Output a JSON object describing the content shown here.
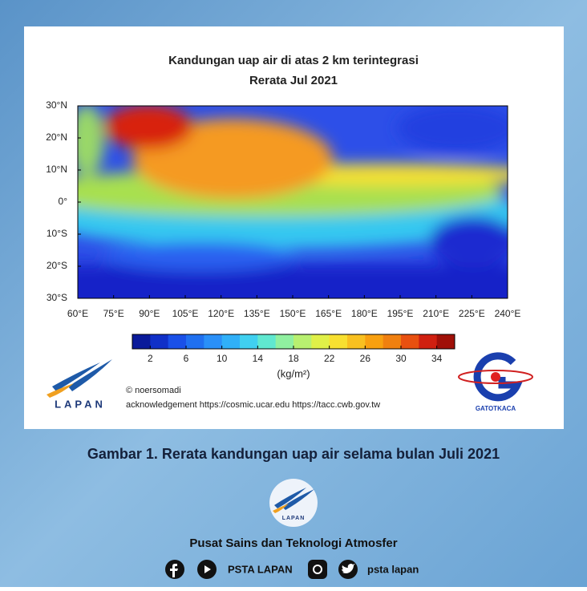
{
  "figure": {
    "title": "Kandungan uap air di atas 2 km terintegrasi",
    "subtitle": "Rerata Jul 2021",
    "lat_ticks": [
      "30°N",
      "20°N",
      "10°N",
      "0°",
      "10°S",
      "20°S",
      "30°S"
    ],
    "lon_ticks": [
      "60°E",
      "75°E",
      "90°E",
      "105°E",
      "120°E",
      "135°E",
      "150°E",
      "165°E",
      "180°E",
      "195°E",
      "210°E",
      "225°E",
      "240°E"
    ],
    "colorbar": {
      "range": [
        0,
        36
      ],
      "ticks": [
        2,
        6,
        10,
        14,
        18,
        22,
        26,
        30,
        34
      ],
      "colors": [
        "#0a1a9a",
        "#1030c8",
        "#1a50e8",
        "#2070f0",
        "#2a90f8",
        "#30b0f8",
        "#40d0f0",
        "#60e8d0",
        "#90f0a0",
        "#b8f070",
        "#e0f048",
        "#f8e030",
        "#f8c020",
        "#f8a010",
        "#f08010",
        "#e85010",
        "#d02010",
        "#a01008"
      ],
      "unit": "(kg/m²)"
    },
    "logo_left": "LAPAN",
    "credit": "© noersomadi",
    "acknowledgement": "acknowledgement https://cosmic.ucar.edu  https://tacc.cwb.gov.tw",
    "logo_right": "GATOTKACA"
  },
  "caption": "Gambar 1. Rerata kandungan uap air selama bulan Juli 2021",
  "footer": {
    "logo": "LAPAN",
    "organization": "Pusat Sains dan Teknologi Atmosfer",
    "social_1": "PSTA LAPAN",
    "social_2": "psta lapan"
  }
}
